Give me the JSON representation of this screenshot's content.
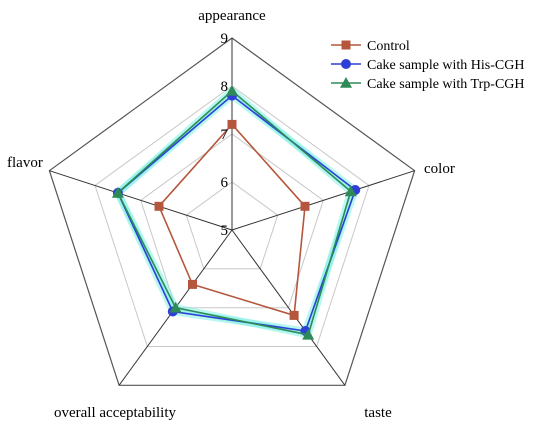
{
  "chart_data": {
    "type": "radar",
    "axes": [
      "appearance",
      "color",
      "taste",
      "overall acceptability",
      "flavor"
    ],
    "rlim": [
      5,
      9
    ],
    "ticks": [
      5,
      6,
      7,
      8,
      9
    ],
    "grid": true,
    "legend": "top-right",
    "series": [
      {
        "name": "Control",
        "values": [
          7.2,
          6.6,
          7.2,
          6.4,
          6.6
        ],
        "color": "#b4573c",
        "marker": "square"
      },
      {
        "name": "Cake sample with His-CGH",
        "values": [
          7.8,
          7.7,
          7.6,
          7.1,
          7.5
        ],
        "color": "#2f3fd6",
        "marker": "circle"
      },
      {
        "name": "Cake sample with Trp-CGH",
        "values": [
          7.9,
          7.6,
          7.7,
          7.0,
          7.5
        ],
        "color": "#2e8b57",
        "marker": "triangle"
      }
    ]
  }
}
